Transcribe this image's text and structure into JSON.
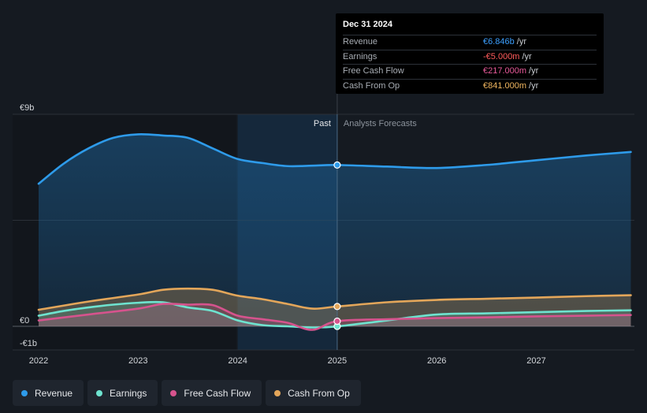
{
  "tooltip": {
    "date": "Dec 31 2024",
    "rows": [
      {
        "label": "Revenue",
        "value": "€6.846b",
        "unit": "/yr",
        "color": "#3ca0ff"
      },
      {
        "label": "Earnings",
        "value": "-€5.000m",
        "unit": "/yr",
        "color": "#ff5b5b"
      },
      {
        "label": "Free Cash Flow",
        "value": "€217.000m",
        "unit": "/yr",
        "color": "#e85a9a"
      },
      {
        "label": "Cash From Op",
        "value": "€841.000m",
        "unit": "/yr",
        "color": "#f0b65f"
      }
    ]
  },
  "legend": [
    {
      "label": "Revenue",
      "color": "#2e9bea"
    },
    {
      "label": "Earnings",
      "color": "#6ee3cf"
    },
    {
      "label": "Free Cash Flow",
      "color": "#d6538d"
    },
    {
      "label": "Cash From Op",
      "color": "#e3a65a"
    }
  ],
  "chart_data": {
    "type": "line",
    "x_ticks": [
      "2022",
      "2023",
      "2024",
      "2025",
      "2026",
      "2027"
    ],
    "y_ticks": [
      "€9b",
      "€0",
      "-€1b"
    ],
    "ylim": [
      -1,
      9
    ],
    "xlim": [
      2021.9,
      2027.95
    ],
    "past_label": "Past",
    "forecast_label": "Analysts Forecasts",
    "divider_x": 2025.0,
    "highlight_start_x": 2024.0,
    "series": [
      {
        "name": "Revenue",
        "color": "#2e9bea",
        "points": [
          [
            2022.0,
            6.05
          ],
          [
            2022.25,
            6.9
          ],
          [
            2022.5,
            7.55
          ],
          [
            2022.75,
            8.0
          ],
          [
            2023.0,
            8.15
          ],
          [
            2023.25,
            8.1
          ],
          [
            2023.5,
            8.0
          ],
          [
            2023.75,
            7.55
          ],
          [
            2024.0,
            7.1
          ],
          [
            2024.25,
            6.93
          ],
          [
            2024.5,
            6.8
          ],
          [
            2024.75,
            6.82
          ],
          [
            2025.0,
            6.846
          ],
          [
            2025.5,
            6.78
          ],
          [
            2026.0,
            6.72
          ],
          [
            2026.5,
            6.85
          ],
          [
            2027.0,
            7.05
          ],
          [
            2027.5,
            7.25
          ],
          [
            2027.95,
            7.4
          ]
        ]
      },
      {
        "name": "Cash From Op",
        "color": "#e3a65a",
        "points": [
          [
            2022.0,
            0.7
          ],
          [
            2022.5,
            1.05
          ],
          [
            2023.0,
            1.35
          ],
          [
            2023.25,
            1.55
          ],
          [
            2023.5,
            1.6
          ],
          [
            2023.75,
            1.55
          ],
          [
            2024.0,
            1.3
          ],
          [
            2024.25,
            1.15
          ],
          [
            2024.5,
            0.95
          ],
          [
            2024.75,
            0.75
          ],
          [
            2025.0,
            0.841
          ],
          [
            2025.5,
            1.02
          ],
          [
            2026.0,
            1.12
          ],
          [
            2026.5,
            1.17
          ],
          [
            2027.0,
            1.22
          ],
          [
            2027.5,
            1.28
          ],
          [
            2027.95,
            1.32
          ]
        ]
      },
      {
        "name": "Earnings",
        "color": "#6ee3cf",
        "points": [
          [
            2022.0,
            0.45
          ],
          [
            2022.25,
            0.65
          ],
          [
            2022.5,
            0.8
          ],
          [
            2022.75,
            0.92
          ],
          [
            2023.0,
            1.0
          ],
          [
            2023.25,
            1.02
          ],
          [
            2023.5,
            0.8
          ],
          [
            2023.75,
            0.65
          ],
          [
            2024.0,
            0.25
          ],
          [
            2024.25,
            0.05
          ],
          [
            2024.5,
            0.0
          ],
          [
            2024.75,
            -0.05
          ],
          [
            2025.0,
            -0.005
          ],
          [
            2025.5,
            0.25
          ],
          [
            2026.0,
            0.5
          ],
          [
            2026.5,
            0.55
          ],
          [
            2027.0,
            0.6
          ],
          [
            2027.5,
            0.65
          ],
          [
            2027.95,
            0.68
          ]
        ]
      },
      {
        "name": "Free Cash Flow",
        "color": "#d6538d",
        "points": [
          [
            2022.0,
            0.25
          ],
          [
            2022.5,
            0.5
          ],
          [
            2023.0,
            0.75
          ],
          [
            2023.25,
            0.95
          ],
          [
            2023.5,
            0.92
          ],
          [
            2023.75,
            0.9
          ],
          [
            2024.0,
            0.45
          ],
          [
            2024.25,
            0.3
          ],
          [
            2024.5,
            0.15
          ],
          [
            2024.75,
            -0.15
          ],
          [
            2025.0,
            0.217
          ],
          [
            2025.5,
            0.3
          ],
          [
            2026.0,
            0.35
          ],
          [
            2026.5,
            0.38
          ],
          [
            2027.0,
            0.42
          ],
          [
            2027.5,
            0.45
          ],
          [
            2027.95,
            0.48
          ]
        ]
      }
    ],
    "tooltip_x": 2025.0
  }
}
